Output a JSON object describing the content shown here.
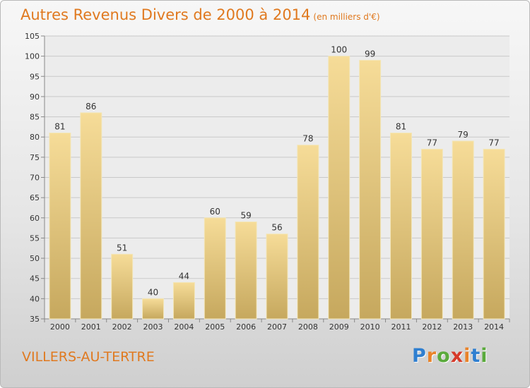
{
  "title": "Autres Revenus Divers de 2000 à 2014",
  "unit": "(en milliers d'€)",
  "town": "VILLERS-AU-TERTRE",
  "logo": {
    "letters": [
      {
        "char": "P",
        "color": "#2f7fd0"
      },
      {
        "char": "r",
        "color": "#e9832a"
      },
      {
        "char": "o",
        "color": "#5aaa3c"
      },
      {
        "char": "x",
        "color": "#d63a2a"
      },
      {
        "char": "i",
        "color": "#e9832a"
      },
      {
        "char": "t",
        "color": "#2f7fd0"
      },
      {
        "char": "i",
        "color": "#5aaa3c"
      }
    ]
  },
  "colors": {
    "title": "#e0791f",
    "bar_top": "#f6dc98",
    "bar_bottom": "#c6a85e",
    "grid": "#c9c9c9",
    "axis": "#888888"
  },
  "chart_data": {
    "type": "bar",
    "categories": [
      "2000",
      "2001",
      "2002",
      "2003",
      "2004",
      "2005",
      "2006",
      "2007",
      "2008",
      "2009",
      "2010",
      "2011",
      "2012",
      "2013",
      "2014"
    ],
    "values": [
      81,
      86,
      51,
      40,
      44,
      60,
      59,
      56,
      78,
      100,
      99,
      81,
      77,
      79,
      77
    ],
    "ylim": [
      35,
      105
    ],
    "yticks": [
      35,
      40,
      45,
      50,
      55,
      60,
      65,
      70,
      75,
      80,
      85,
      90,
      95,
      100,
      105
    ],
    "grid": true
  }
}
